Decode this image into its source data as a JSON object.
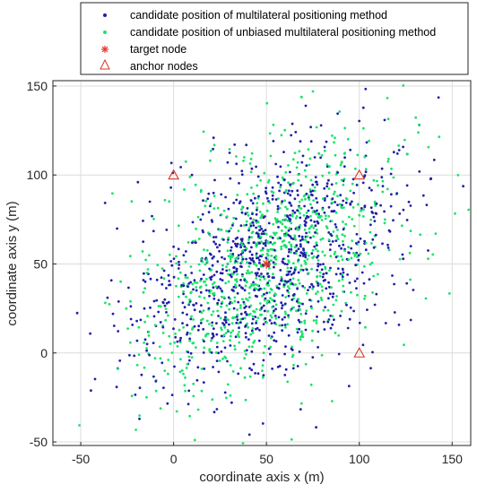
{
  "chart_data": {
    "type": "scatter",
    "title": "",
    "xlabel": "coordinate axis x (m)",
    "ylabel": "coordinate axis y (m)",
    "xlim": [
      -65,
      160
    ],
    "ylim": [
      -52,
      153
    ],
    "xticks": [
      -50,
      0,
      50,
      100,
      150
    ],
    "yticks": [
      -50,
      0,
      50,
      100,
      150
    ],
    "grid": true,
    "legend_position": "top",
    "colors": {
      "multilateral": "#1f1fa8",
      "unbiased": "#19e36b",
      "target": "#e8372a",
      "anchor": "#d9362b"
    },
    "cloud": {
      "center": [
        50,
        50
      ],
      "spread_x": 33,
      "spread_y": 32,
      "correlation": 0.45
    },
    "series": [
      {
        "name": "candidate position of multilateral positioning method",
        "marker": "dot",
        "color": "#1f1fa8",
        "count": 950
      },
      {
        "name": "candidate position of unbiased multilateral positioning method",
        "marker": "dot",
        "color": "#19e36b",
        "count": 950
      },
      {
        "name": "target node",
        "marker": "asterisk",
        "color": "#e8372a",
        "points": [
          [
            50,
            50
          ]
        ]
      },
      {
        "name": "anchor nodes",
        "marker": "triangle",
        "color": "#d9362b",
        "points": [
          [
            0,
            100
          ],
          [
            100,
            100
          ],
          [
            100,
            0
          ]
        ]
      }
    ]
  }
}
